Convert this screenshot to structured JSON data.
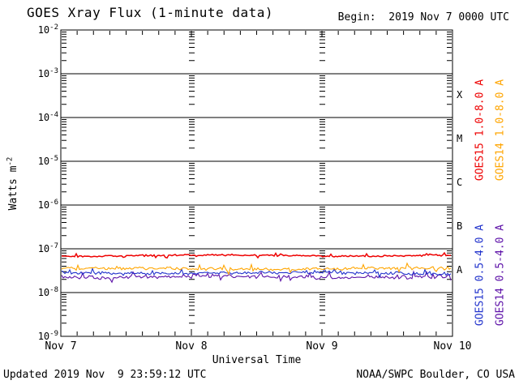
{
  "title": "GOES Xray Flux (1-minute data)",
  "begin_label": "Begin:  2019 Nov 7 0000 UTC",
  "footer": {
    "updated": "Updated 2019 Nov  9 23:59:12 UTC",
    "source": "NOAA/SWPC Boulder, CO USA"
  },
  "axes": {
    "ylabel_base": "Watts m",
    "ylabel_sup": "-2",
    "xlabel": "Universal Time",
    "x_tick_labels": [
      "Nov 7",
      "Nov 8",
      "Nov 9",
      "Nov 10"
    ],
    "y_exponents": [
      "-2",
      "-3",
      "-4",
      "-5",
      "-6",
      "-7",
      "-8",
      "-9"
    ],
    "flare_class_letters": [
      "X",
      "M",
      "C",
      "B",
      "A"
    ]
  },
  "colors": {
    "goes15_long": "#ee0000",
    "goes14_long": "#ffa500",
    "goes15_short": "#2233cc",
    "goes14_short": "#5d11a8",
    "axis": "#000000",
    "background": "#ffffff"
  },
  "legend": [
    {
      "label": "GOES15 1.0-8.0 A",
      "color": "#ee0000"
    },
    {
      "label": "GOES14 1.0-8.0 A",
      "color": "#ffa500"
    },
    {
      "label": "GOES15 0.5-4.0 A",
      "color": "#2233cc"
    },
    {
      "label": "GOES14 0.5-4.0 A",
      "color": "#5d11a8"
    }
  ],
  "chart_data": {
    "type": "line",
    "title": "GOES Xray Flux (1-minute data)",
    "xlabel": "Universal Time",
    "ylabel": "Watts m^-2",
    "x_range": [
      "2019 Nov 7 0000 UTC",
      "2019 Nov 10 0000 UTC"
    ],
    "x_tick_labels": [
      "Nov 7",
      "Nov 8",
      "Nov 9",
      "Nov 10"
    ],
    "y_scale": "log",
    "ylim": [
      1e-09,
      0.01
    ],
    "grid": "vertical dotted lines at day boundaries; horizontal lines at each decade",
    "legend_position": "right, rotated vertical",
    "series": [
      {
        "name": "GOES15 1.0-8.0 A",
        "color": "#ee0000",
        "approx_flux_w_m2": 7e-08,
        "description": "flat noisy line ~A7 level, just below 1e-7"
      },
      {
        "name": "GOES14 1.0-8.0 A",
        "color": "#ffa500",
        "approx_flux_w_m2": 3.5e-08,
        "description": "flat noisy line ~3.5e-8"
      },
      {
        "name": "GOES15 0.5-4.0 A",
        "color": "#2233cc",
        "approx_flux_w_m2": 2.8e-08,
        "description": "flat noisy line ~2.8e-8, overlaps purple"
      },
      {
        "name": "GOES14 0.5-4.0 A",
        "color": "#5d11a8",
        "approx_flux_w_m2": 2.3e-08,
        "description": "flat noisy line ~2.3e-8, under blue"
      }
    ],
    "flare_class_bands": {
      "X": ">= 1e-4",
      "M": "1e-5 to 1e-4",
      "C": "1e-6 to 1e-5",
      "B": "1e-7 to 1e-6",
      "A": "< 1e-7"
    }
  }
}
